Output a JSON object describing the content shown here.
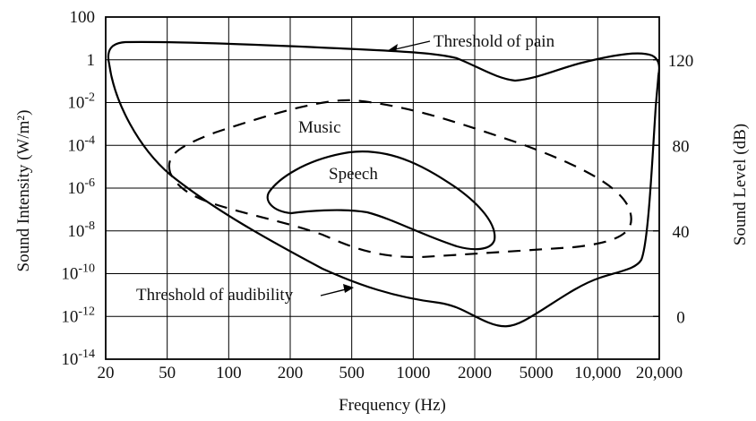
{
  "chart_data": {
    "type": "line",
    "xlabel": "Frequency (Hz)",
    "ylabel": "Sound Intensity (W/m²)",
    "ylabel_right": "Sound Level (dB)",
    "x_ticks": [
      "20",
      "50",
      "100",
      "200",
      "500",
      "1000",
      "2000",
      "5000",
      "10,000",
      "20,000"
    ],
    "y_ticks": [
      {
        "base": "10",
        "exp": "-14",
        "value": -14
      },
      {
        "base": "10",
        "exp": "-12",
        "value": -12
      },
      {
        "base": "10",
        "exp": "-10",
        "value": -10
      },
      {
        "base": "10",
        "exp": "-8",
        "value": -8
      },
      {
        "base": "10",
        "exp": "-6",
        "value": -6
      },
      {
        "base": "10",
        "exp": "-4",
        "value": -4
      },
      {
        "base": "10",
        "exp": "-2",
        "value": -2
      },
      {
        "base": "1",
        "exp": "",
        "value": 0
      },
      {
        "base": "100",
        "exp": "",
        "value": 2
      }
    ],
    "y_right_ticks": [
      {
        "label": "0",
        "value": 0
      },
      {
        "label": "40",
        "value": 40
      },
      {
        "label": "80",
        "value": 80
      },
      {
        "label": "120",
        "value": 120
      }
    ],
    "xlim": [
      20,
      20000
    ],
    "ylim_log10": [
      -14,
      2
    ],
    "y_right_lim_db": [
      -20,
      140
    ],
    "x_scale": "log-like",
    "grid": true,
    "series": [
      {
        "name": "Threshold of pain",
        "style": "solid",
        "points": [
          [
            20,
            0.2
          ],
          [
            22,
            0.6
          ],
          [
            25,
            0.8
          ],
          [
            50,
            0.85
          ],
          [
            100,
            0.8
          ],
          [
            500,
            0.65
          ],
          [
            1000,
            0.5
          ],
          [
            2000,
            0.4
          ],
          [
            2900,
            -0.6
          ],
          [
            3600,
            -0.9
          ],
          [
            5000,
            -0.6
          ],
          [
            10000,
            0.0
          ],
          [
            14000,
            0.3
          ],
          [
            18000,
            0.1
          ],
          [
            20000,
            -0.5
          ]
        ]
      },
      {
        "name": "Threshold of audibility",
        "style": "solid",
        "points": [
          [
            20,
            0.2
          ],
          [
            24,
            -2.0
          ],
          [
            35,
            -4.0
          ],
          [
            50,
            -5.7
          ],
          [
            70,
            -6.9
          ],
          [
            100,
            -7.8
          ],
          [
            150,
            -8.5
          ],
          [
            200,
            -9.2
          ],
          [
            300,
            -10.0
          ],
          [
            500,
            -10.8
          ],
          [
            1000,
            -11.4
          ],
          [
            1500,
            -11.6
          ],
          [
            2000,
            -12.0
          ],
          [
            3000,
            -12.4
          ],
          [
            4000,
            -12.0
          ],
          [
            6000,
            -11.2
          ],
          [
            10000,
            -10.2
          ],
          [
            14000,
            -9.8
          ],
          [
            16000,
            -9.4
          ],
          [
            18000,
            -7.5
          ],
          [
            19500,
            -3.5
          ],
          [
            20000,
            -0.5
          ]
        ]
      },
      {
        "name": "Music",
        "style": "dashed",
        "points": [
          [
            50,
            -5.5
          ],
          [
            55,
            -3.8
          ],
          [
            80,
            -3.0
          ],
          [
            150,
            -2.2
          ],
          [
            300,
            -1.2
          ],
          [
            500,
            -0.6
          ],
          [
            800,
            -0.7
          ],
          [
            1500,
            -1.5
          ],
          [
            3000,
            -3.0
          ],
          [
            7000,
            -4.8
          ],
          [
            12000,
            -6.2
          ],
          [
            14000,
            -7.3
          ],
          [
            13000,
            -8.3
          ],
          [
            10000,
            -8.5
          ],
          [
            4000,
            -8.8
          ],
          [
            2000,
            -9.0
          ],
          [
            1000,
            -9.2
          ],
          [
            500,
            -8.7
          ],
          [
            300,
            -8.0
          ],
          [
            150,
            -7.4
          ],
          [
            80,
            -6.8
          ],
          [
            50,
            -5.5
          ]
        ]
      },
      {
        "name": "Speech",
        "style": "solid",
        "points": [
          [
            150,
            -6.2
          ],
          [
            200,
            -5.0
          ],
          [
            300,
            -4.5
          ],
          [
            500,
            -4.2
          ],
          [
            800,
            -4.4
          ],
          [
            1200,
            -5.0
          ],
          [
            1800,
            -6.0
          ],
          [
            2400,
            -7.3
          ],
          [
            2500,
            -8.1
          ],
          [
            2200,
            -8.6
          ],
          [
            1800,
            -8.7
          ],
          [
            1200,
            -8.0
          ],
          [
            800,
            -7.5
          ],
          [
            500,
            -7.0
          ],
          [
            300,
            -7.0
          ],
          [
            200,
            -7.1
          ],
          [
            150,
            -6.2
          ]
        ]
      }
    ]
  }
}
